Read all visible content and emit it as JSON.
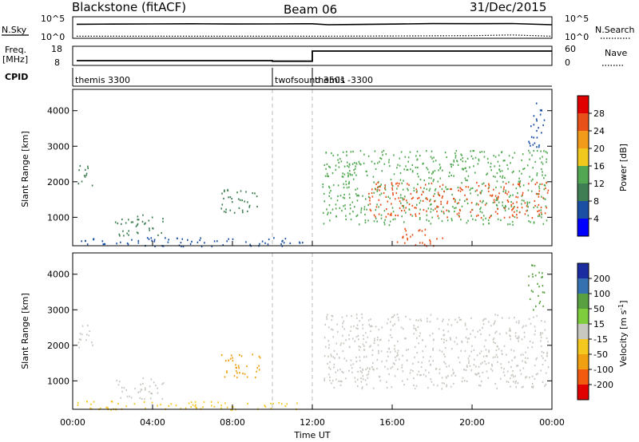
{
  "header": {
    "station": "Blackstone (fitACF)",
    "beam": "Beam 06",
    "date": "31/Dec/2015"
  },
  "sidepanel": {
    "nsky_label": "N.Sky",
    "nsky_ticks": [
      "10^5",
      "10^0"
    ],
    "nsearch_label": "N.Search",
    "freq_label_1": "Freq.",
    "freq_label_2": "[MHz]",
    "freq_ticks": [
      "18",
      "8"
    ],
    "nave_label": "Nave",
    "nave_ticks": [
      "60",
      "0"
    ],
    "cpid_label": "CPID"
  },
  "cpid_segments": [
    {
      "name": "themis 3300",
      "start_hour": 0
    },
    {
      "name": "twofsound 3501",
      "start_hour": 10
    },
    {
      "name": "themis -3300",
      "start_hour": 12
    }
  ],
  "colors": {
    "power_scale": [
      "#0000ff",
      "#1a4fa3",
      "#3f7e53",
      "#52a852",
      "#f0c81e",
      "#f29a1a",
      "#e8501a",
      "#e00000"
    ],
    "velocity_scale": [
      "#e00000",
      "#f25a10",
      "#f0a010",
      "#f5c820",
      "#c8c8c0",
      "#7dcd3c",
      "#58a040",
      "#3570b0",
      "#1a2ca0"
    ],
    "ground_scatter": "#c8c8c0"
  },
  "chart_data": [
    {
      "type": "line",
      "title": "",
      "xlabel": "",
      "ylabel": "N.Sky",
      "yscale": "log",
      "ylim": [
        1,
        100000
      ],
      "series": [
        {
          "name": "N.Sky",
          "x": [
            0.2,
            2,
            4,
            6,
            8,
            10,
            12,
            12.8,
            14,
            16,
            18,
            20,
            22,
            24
          ],
          "y": [
            1800,
            2000,
            2200,
            2300,
            2100,
            2200,
            2300,
            1400,
            1600,
            2000,
            2600,
            2500,
            2700,
            1400
          ]
        },
        {
          "name": "N.Search",
          "x": [
            0.2,
            4,
            8,
            12,
            16,
            20,
            22,
            24
          ],
          "y": [
            3,
            3,
            3,
            3,
            3.5,
            4,
            6,
            3
          ]
        }
      ]
    },
    {
      "type": "line",
      "title": "",
      "xlabel": "",
      "ylabel": "Freq. [MHz]",
      "ylim": [
        8,
        18
      ],
      "y2label": "Nave",
      "y2lim": [
        0,
        60
      ],
      "series": [
        {
          "name": "Freq.",
          "x": [
            0.2,
            10,
            10,
            12,
            12,
            24
          ],
          "y": [
            10.5,
            10.5,
            10.2,
            10.2,
            15.5,
            15.5
          ]
        }
      ]
    },
    {
      "type": "heatmap",
      "title": "",
      "xlabel": "",
      "ylabel": "Slant Range [km]",
      "ylim": [
        200,
        4600
      ],
      "xlim": [
        0,
        24
      ],
      "colorbar": {
        "label": "Power [dB]",
        "ticks": [
          4,
          8,
          12,
          16,
          20,
          24,
          28
        ]
      },
      "regions": [
        {
          "x": [
            0.2,
            1.0
          ],
          "y": [
            1900,
            2500
          ],
          "level": 8
        },
        {
          "x": [
            2.1,
            4.6
          ],
          "y": [
            500,
            1100
          ],
          "level": 10
        },
        {
          "x": [
            7.4,
            9.4
          ],
          "y": [
            1100,
            1800
          ],
          "level": 10
        },
        {
          "x": [
            0.0,
            11.8
          ],
          "y": [
            200,
            450
          ],
          "level": 6
        },
        {
          "x": [
            12.5,
            23.8
          ],
          "y": [
            800,
            2900
          ],
          "level": 14
        },
        {
          "x": [
            14.8,
            23.8
          ],
          "y": [
            1000,
            2000
          ],
          "level": 26
        },
        {
          "x": [
            16.2,
            18.5
          ],
          "y": [
            200,
            700
          ],
          "level": 26
        },
        {
          "x": [
            22.8,
            23.6
          ],
          "y": [
            3000,
            4300
          ],
          "level": 6
        }
      ]
    },
    {
      "type": "heatmap",
      "title": "",
      "xlabel": "Time UT",
      "ylabel": "Slant Range [km]",
      "ylim": [
        200,
        4600
      ],
      "xlim": [
        0,
        24
      ],
      "x_ticks": [
        "00:00",
        "04:00",
        "08:00",
        "12:00",
        "16:00",
        "20:00",
        "00:00"
      ],
      "colorbar": {
        "label": "Velocity [m s^-1]",
        "ticks": [
          200,
          100,
          50,
          15,
          -15,
          -50,
          -100,
          -200
        ]
      },
      "regions": [
        {
          "x": [
            0.2,
            1.0
          ],
          "y": [
            1900,
            2600
          ],
          "level": 0
        },
        {
          "x": [
            2.1,
            4.6
          ],
          "y": [
            500,
            1100
          ],
          "level": 0
        },
        {
          "x": [
            7.4,
            9.4
          ],
          "y": [
            1100,
            1800
          ],
          "level": -60
        },
        {
          "x": [
            0.0,
            11.8
          ],
          "y": [
            200,
            450
          ],
          "level": -30
        },
        {
          "x": [
            12.5,
            23.8
          ],
          "y": [
            800,
            2900
          ],
          "level": 0
        },
        {
          "x": [
            22.8,
            23.6
          ],
          "y": [
            3000,
            4300
          ],
          "level": 60
        }
      ]
    }
  ]
}
